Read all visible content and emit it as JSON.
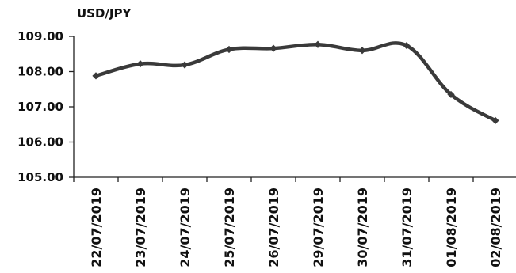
{
  "chart_data": {
    "type": "line",
    "title": "USD/JPY",
    "xlabel": "",
    "ylabel": "",
    "categories": [
      "22/07/2019",
      "23/07/2019",
      "24/07/2019",
      "25/07/2019",
      "26/07/2019",
      "29/07/2019",
      "30/07/2019",
      "31/07/2019",
      "01/08/2019",
      "02/08/2019"
    ],
    "series": [
      {
        "values": [
          107.88,
          108.22,
          108.19,
          108.63,
          108.66,
          108.77,
          108.6,
          108.74,
          107.35,
          106.61
        ]
      }
    ],
    "ylim": [
      105,
      109
    ],
    "yticks": [
      105,
      106,
      107,
      108,
      109
    ],
    "ytick_labels": [
      "105.00",
      "106.00",
      "107.00",
      "108.00",
      "109.00"
    ],
    "grid": false,
    "line_color": "#3a3a3a",
    "axis_color": "#222222"
  }
}
